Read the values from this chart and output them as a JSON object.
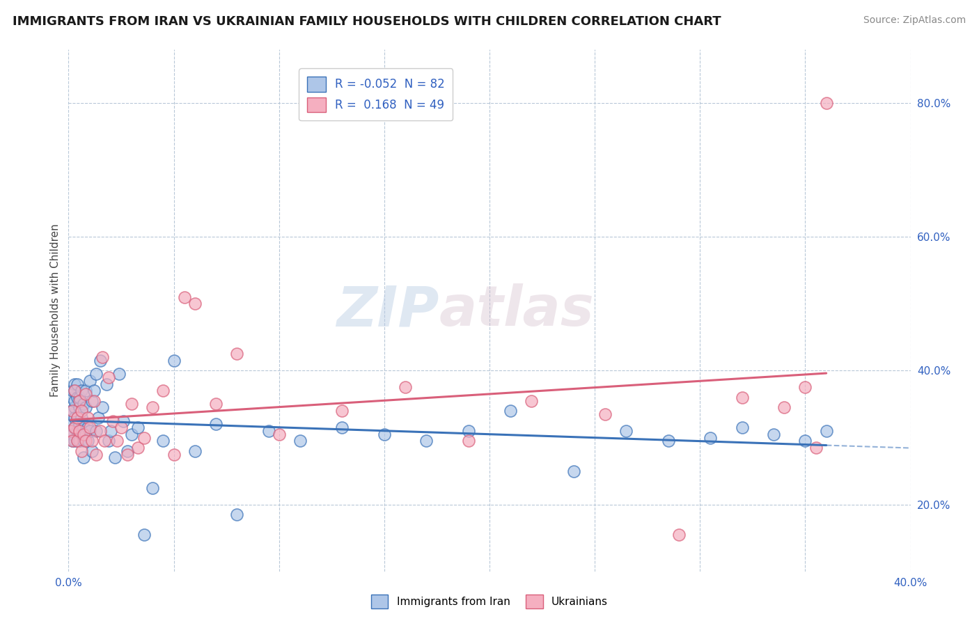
{
  "title": "IMMIGRANTS FROM IRAN VS UKRAINIAN FAMILY HOUSEHOLDS WITH CHILDREN CORRELATION CHART",
  "source_text": "Source: ZipAtlas.com",
  "ylabel": "Family Households with Children",
  "xlim": [
    0.0,
    0.4
  ],
  "ylim": [
    0.1,
    0.88
  ],
  "ytick_labels_right": [
    "20.0%",
    "40.0%",
    "60.0%",
    "80.0%"
  ],
  "ytick_positions_right": [
    0.2,
    0.4,
    0.6,
    0.8
  ],
  "iran_R": -0.052,
  "iran_N": 82,
  "ukr_R": 0.168,
  "ukr_N": 49,
  "iran_color": "#aec6e8",
  "ukr_color": "#f5afc0",
  "iran_line_color": "#3a72b8",
  "ukr_line_color": "#d95f7a",
  "iran_scatter_x": [
    0.001,
    0.001,
    0.001,
    0.002,
    0.002,
    0.002,
    0.002,
    0.002,
    0.002,
    0.003,
    0.003,
    0.003,
    0.003,
    0.003,
    0.003,
    0.003,
    0.004,
    0.004,
    0.004,
    0.004,
    0.004,
    0.005,
    0.005,
    0.005,
    0.005,
    0.005,
    0.005,
    0.006,
    0.006,
    0.006,
    0.006,
    0.006,
    0.007,
    0.007,
    0.007,
    0.007,
    0.008,
    0.008,
    0.008,
    0.009,
    0.009,
    0.01,
    0.01,
    0.011,
    0.011,
    0.012,
    0.013,
    0.013,
    0.014,
    0.015,
    0.016,
    0.018,
    0.019,
    0.02,
    0.022,
    0.024,
    0.026,
    0.028,
    0.03,
    0.033,
    0.036,
    0.04,
    0.045,
    0.05,
    0.06,
    0.07,
    0.08,
    0.095,
    0.11,
    0.13,
    0.15,
    0.17,
    0.19,
    0.21,
    0.24,
    0.265,
    0.285,
    0.305,
    0.32,
    0.335,
    0.35,
    0.36
  ],
  "iran_scatter_y": [
    0.32,
    0.31,
    0.335,
    0.34,
    0.295,
    0.36,
    0.31,
    0.37,
    0.305,
    0.345,
    0.38,
    0.315,
    0.295,
    0.33,
    0.355,
    0.37,
    0.295,
    0.33,
    0.31,
    0.36,
    0.38,
    0.295,
    0.31,
    0.345,
    0.32,
    0.36,
    0.295,
    0.31,
    0.34,
    0.37,
    0.305,
    0.33,
    0.27,
    0.35,
    0.315,
    0.295,
    0.345,
    0.305,
    0.37,
    0.315,
    0.295,
    0.385,
    0.31,
    0.355,
    0.28,
    0.37,
    0.395,
    0.31,
    0.33,
    0.415,
    0.345,
    0.38,
    0.295,
    0.31,
    0.27,
    0.395,
    0.325,
    0.28,
    0.305,
    0.315,
    0.155,
    0.225,
    0.295,
    0.415,
    0.28,
    0.32,
    0.185,
    0.31,
    0.295,
    0.315,
    0.305,
    0.295,
    0.31,
    0.34,
    0.25,
    0.31,
    0.295,
    0.3,
    0.315,
    0.305,
    0.295,
    0.31
  ],
  "ukr_scatter_x": [
    0.001,
    0.002,
    0.002,
    0.003,
    0.003,
    0.004,
    0.004,
    0.005,
    0.005,
    0.006,
    0.006,
    0.007,
    0.008,
    0.008,
    0.009,
    0.01,
    0.011,
    0.012,
    0.013,
    0.015,
    0.016,
    0.017,
    0.019,
    0.021,
    0.023,
    0.025,
    0.028,
    0.03,
    0.033,
    0.036,
    0.04,
    0.045,
    0.05,
    0.055,
    0.06,
    0.07,
    0.08,
    0.1,
    0.13,
    0.16,
    0.19,
    0.22,
    0.255,
    0.29,
    0.32,
    0.34,
    0.35,
    0.355,
    0.36
  ],
  "ukr_scatter_y": [
    0.31,
    0.295,
    0.34,
    0.315,
    0.37,
    0.295,
    0.33,
    0.31,
    0.355,
    0.28,
    0.34,
    0.305,
    0.365,
    0.295,
    0.33,
    0.315,
    0.295,
    0.355,
    0.275,
    0.31,
    0.42,
    0.295,
    0.39,
    0.325,
    0.295,
    0.315,
    0.275,
    0.35,
    0.285,
    0.3,
    0.345,
    0.37,
    0.275,
    0.51,
    0.5,
    0.35,
    0.425,
    0.305,
    0.34,
    0.375,
    0.295,
    0.355,
    0.335,
    0.155,
    0.36,
    0.345,
    0.375,
    0.285,
    0.8
  ],
  "watermark_zip": "ZIP",
  "watermark_atlas": "atlas",
  "legend_iran_label": "Immigrants from Iran",
  "legend_ukr_label": "Ukrainians",
  "background_color": "#ffffff"
}
